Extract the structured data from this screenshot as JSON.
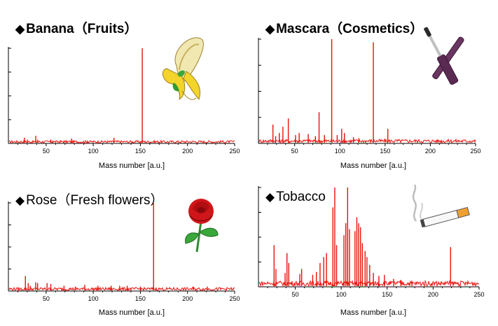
{
  "colors": {
    "series": "#e8120c",
    "axis": "#000000"
  },
  "panels": [
    {
      "title": "Banana",
      "subtitle": "（Fruits）",
      "bold": true,
      "icon": "banana-icon"
    },
    {
      "title": "Mascara",
      "subtitle": "（Cosmetics）",
      "bold": true,
      "icon": "mascara-icon"
    },
    {
      "title": "Rose",
      "subtitle": "（Fresh flowers）",
      "bold": false,
      "icon": "rose-icon"
    },
    {
      "title": "Tobacco",
      "subtitle": "",
      "bold": false,
      "icon": "cigarette-icon"
    }
  ],
  "chart_data": [
    {
      "type": "line",
      "title": "Banana（Fruits）",
      "xlabel": "Mass number [a.u.]",
      "ylabel": "",
      "xlim": [
        10,
        250
      ],
      "ylim": [
        0,
        100
      ],
      "x_ticks": [
        50,
        100,
        150,
        200,
        250
      ],
      "baseline": 3,
      "peaks": [
        [
          27,
          6
        ],
        [
          30,
          4
        ],
        [
          39,
          8
        ],
        [
          41,
          4
        ],
        [
          55,
          4
        ],
        [
          57,
          3
        ],
        [
          69,
          3
        ],
        [
          77,
          5
        ],
        [
          94,
          3
        ],
        [
          122,
          6
        ],
        [
          152,
          100
        ]
      ]
    },
    {
      "type": "line",
      "title": "Mascara（Cosmetics）",
      "xlabel": "Mass number [a.u.]",
      "ylabel": "",
      "xlim": [
        10,
        250
      ],
      "ylim": [
        0,
        100
      ],
      "x_ticks": [
        50,
        100,
        150,
        200,
        250
      ],
      "baseline": 4,
      "peaks": [
        [
          26,
          18
        ],
        [
          29,
          7
        ],
        [
          33,
          10
        ],
        [
          37,
          16
        ],
        [
          43,
          24
        ],
        [
          51,
          8
        ],
        [
          55,
          10
        ],
        [
          65,
          9
        ],
        [
          73,
          7
        ],
        [
          77,
          30
        ],
        [
          83,
          8
        ],
        [
          91,
          100
        ],
        [
          97,
          8
        ],
        [
          102,
          14
        ],
        [
          105,
          10
        ],
        [
          115,
          6
        ],
        [
          121,
          5
        ],
        [
          137,
          97
        ],
        [
          153,
          14
        ]
      ]
    },
    {
      "type": "line",
      "title": "Rose（Fresh flowers）",
      "xlabel": "Mass number [a.u.]",
      "ylabel": "",
      "xlim": [
        10,
        250
      ],
      "ylim": [
        0,
        100
      ],
      "x_ticks": [
        50,
        100,
        150,
        200,
        250
      ],
      "baseline": 4,
      "peaks": [
        [
          28,
          17
        ],
        [
          31,
          9
        ],
        [
          33,
          6
        ],
        [
          39,
          10
        ],
        [
          41,
          9
        ],
        [
          51,
          9
        ],
        [
          55,
          8
        ],
        [
          69,
          6
        ],
        [
          81,
          5
        ],
        [
          91,
          7
        ],
        [
          105,
          6
        ],
        [
          119,
          6
        ],
        [
          128,
          6
        ],
        [
          136,
          6
        ],
        [
          150,
          5
        ],
        [
          164,
          100
        ],
        [
          206,
          5
        ],
        [
          221,
          5
        ]
      ]
    },
    {
      "type": "line",
      "title": "Tobacco",
      "xlabel": "Mass number [a.u.]",
      "ylabel": "",
      "xlim": [
        10,
        250
      ],
      "ylim": [
        0,
        100
      ],
      "x_ticks": [
        50,
        100,
        150,
        200,
        250
      ],
      "baseline": 6,
      "peaks": [
        [
          27,
          42
        ],
        [
          29,
          18
        ],
        [
          39,
          14
        ],
        [
          41,
          34
        ],
        [
          43,
          24
        ],
        [
          55,
          13
        ],
        [
          57,
          18
        ],
        [
          69,
          12
        ],
        [
          73,
          15
        ],
        [
          77,
          24
        ],
        [
          81,
          30
        ],
        [
          84,
          34
        ],
        [
          91,
          80
        ],
        [
          93,
          100
        ],
        [
          95,
          42
        ],
        [
          103,
          52
        ],
        [
          105,
          64
        ],
        [
          107,
          100
        ],
        [
          109,
          58
        ],
        [
          115,
          56
        ],
        [
          117,
          70
        ],
        [
          119,
          64
        ],
        [
          121,
          60
        ],
        [
          123,
          44
        ],
        [
          126,
          36
        ],
        [
          128,
          30
        ],
        [
          131,
          22
        ],
        [
          135,
          14
        ],
        [
          141,
          11
        ],
        [
          147,
          12
        ],
        [
          157,
          8
        ],
        [
          165,
          7
        ],
        [
          177,
          6
        ],
        [
          219,
          40
        ]
      ]
    }
  ]
}
